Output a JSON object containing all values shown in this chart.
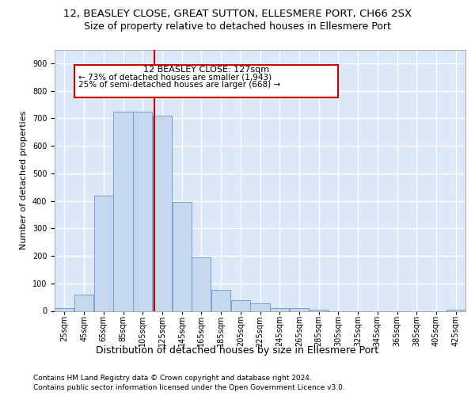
{
  "title1": "12, BEASLEY CLOSE, GREAT SUTTON, ELLESMERE PORT, CH66 2SX",
  "title2": "Size of property relative to detached houses in Ellesmere Port",
  "xlabel": "Distribution of detached houses by size in Ellesmere Port",
  "ylabel": "Number of detached properties",
  "footer1": "Contains HM Land Registry data © Crown copyright and database right 2024.",
  "footer2": "Contains public sector information licensed under the Open Government Licence v3.0.",
  "annotation_line1": "12 BEASLEY CLOSE: 127sqm",
  "annotation_line2": "← 73% of detached houses are smaller (1,943)",
  "annotation_line3": "25% of semi-detached houses are larger (668) →",
  "bin_starts": [
    25,
    45,
    65,
    85,
    105,
    125,
    145,
    165,
    185,
    205,
    225,
    245,
    265,
    285,
    305,
    325,
    345,
    365,
    385,
    405,
    425
  ],
  "bar_values": [
    10,
    60,
    420,
    725,
    725,
    710,
    395,
    195,
    75,
    40,
    28,
    10,
    10,
    5,
    0,
    0,
    0,
    0,
    0,
    0,
    5
  ],
  "bar_color": "#c5d8f0",
  "bar_edge_color": "#6699cc",
  "vline_color": "#cc0000",
  "vline_x": 127,
  "annotation_box_color": "#cc0000",
  "ylim": [
    0,
    950
  ],
  "yticks": [
    0,
    100,
    200,
    300,
    400,
    500,
    600,
    700,
    800,
    900
  ],
  "bg_color": "#dce8f8",
  "grid_color": "#ffffff",
  "title1_fontsize": 9.5,
  "title2_fontsize": 9,
  "ann_fontsize1": 8,
  "ann_fontsize2": 7.5,
  "ylabel_fontsize": 8,
  "xlabel_fontsize": 9,
  "footer_fontsize": 6.5,
  "tick_fontsize": 7
}
